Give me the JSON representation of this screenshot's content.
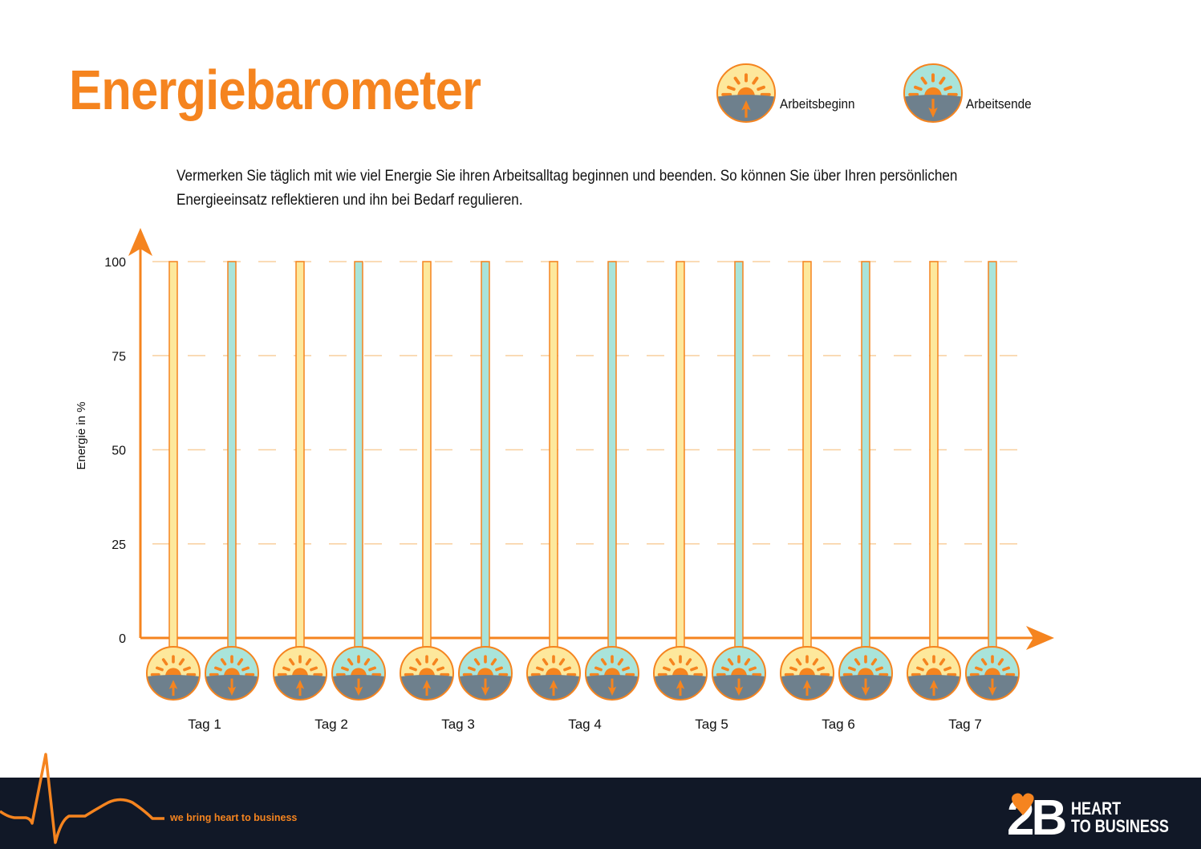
{
  "header": {
    "title": "Energiebarometer",
    "legend": [
      {
        "label": "Arbeitsbeginn",
        "icon": "sunrise-icon",
        "color": "#fde89c"
      },
      {
        "label": "Arbeitsende",
        "icon": "sunset-icon",
        "color": "#a9e4da"
      }
    ]
  },
  "intro": "Vermerken Sie täglich mit wie viel Energie Sie ihren Arbeitsalltag beginnen und beenden. So können Sie über Ihren persönlichen Energieeinsatz reflektieren und ihn bei Bedarf regulieren.",
  "chart_data": {
    "type": "bar",
    "title": "",
    "xlabel": "",
    "ylabel": "Energie in %",
    "ylim": [
      0,
      100
    ],
    "yticks": [
      "0",
      "25",
      "50",
      "75",
      "100"
    ],
    "grid": true,
    "categories": [
      "Tag 1",
      "Tag 2",
      "Tag 3",
      "Tag 4",
      "Tag 5",
      "Tag 6",
      "Tag 7"
    ],
    "series": [
      {
        "name": "Arbeitsbeginn",
        "values": [
          null,
          null,
          null,
          null,
          null,
          null,
          null
        ],
        "color": "#fde89c"
      },
      {
        "name": "Arbeitsende",
        "values": [
          null,
          null,
          null,
          null,
          null,
          null,
          null
        ],
        "color": "#a9e4da"
      }
    ],
    "colors": {
      "axis": "#f5841f",
      "grid": "#f8cf9e",
      "ground": "#6e808d",
      "sun": "#f5841f"
    }
  },
  "footer": {
    "tagline": "we bring heart to business",
    "logo": "2B HEART TO BUSINESS",
    "logo_line1": "HEART",
    "logo_line2": "TO BUSINESS"
  }
}
